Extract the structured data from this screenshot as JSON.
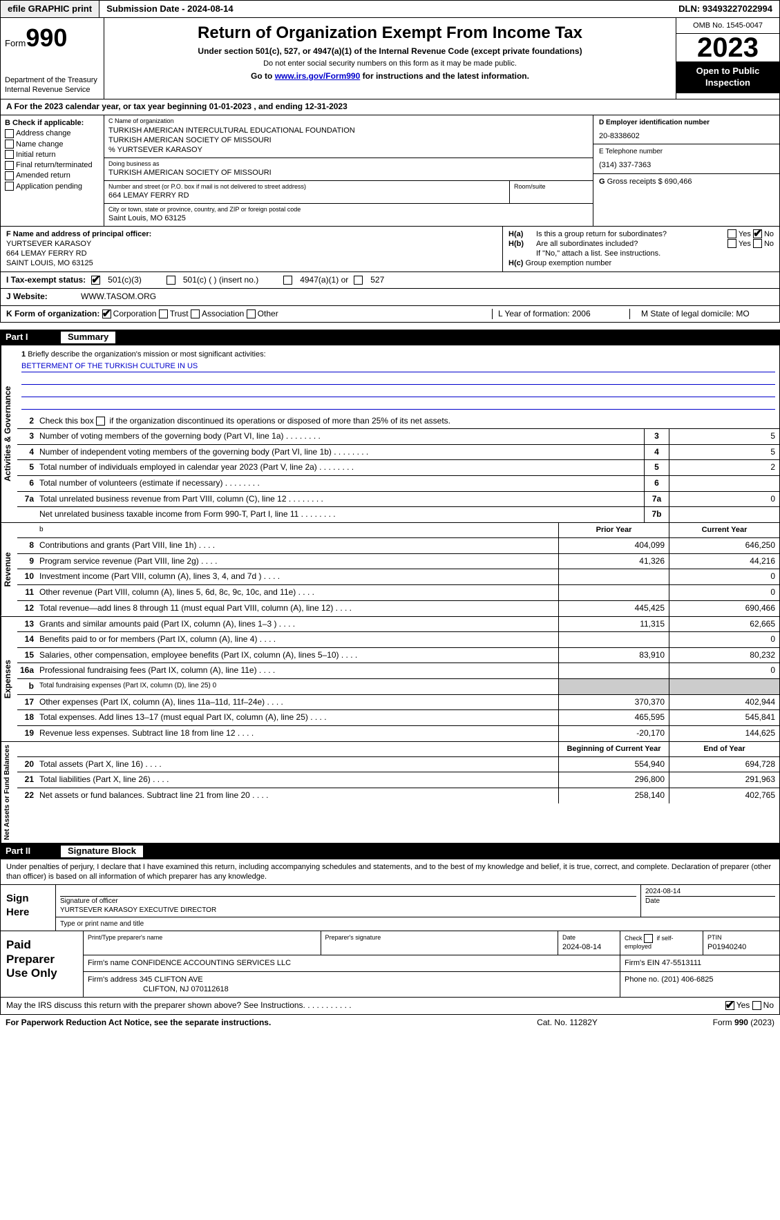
{
  "top": {
    "efile": "efile GRAPHIC print",
    "submission": "Submission Date - 2024-08-14",
    "dln": "DLN: 93493227022994"
  },
  "header": {
    "form_word": "Form",
    "form_no": "990",
    "title": "Return of Organization Exempt From Income Tax",
    "sub1": "Under section 501(c), 527, or 4947(a)(1) of the Internal Revenue Code (except private foundations)",
    "sub2": "Do not enter social security numbers on this form as it may be made public.",
    "sub3_pre": "Go to ",
    "sub3_link": "www.irs.gov/Form990",
    "sub3_post": " for instructions and the latest information.",
    "dept": "Department of the Treasury\nInternal Revenue Service",
    "omb": "OMB No. 1545-0047",
    "year": "2023",
    "inspection": "Open to Public Inspection"
  },
  "rowA": "A   For the 2023 calendar year, or tax year beginning 01-01-2023   , and ending 12-31-2023",
  "B": {
    "label": "B Check if applicable:",
    "items": [
      "Address change",
      "Name change",
      "Initial return",
      "Final return/terminated",
      "Amended return",
      "Application pending"
    ]
  },
  "C": {
    "name_lbl": "C Name of organization",
    "name1": "TURKISH AMERICAN INTERCULTURAL EDUCATIONAL FOUNDATION",
    "name2": "TURKISH AMERICAN SOCIETY OF MISSOURI",
    "name3": "% YURTSEVER KARASOY",
    "dba_lbl": "Doing business as",
    "dba": "TURKISH AMERICAN SOCIETY OF MISSOURI",
    "addr_lbl": "Number and street (or P.O. box if mail is not delivered to street address)",
    "addr": "664 LEMAY FERRY RD",
    "room_lbl": "Room/suite",
    "city_lbl": "City or town, state or province, country, and ZIP or foreign postal code",
    "city": "Saint Louis, MO  63125"
  },
  "D": {
    "lbl": "D Employer identification number",
    "val": "20-8338602"
  },
  "E": {
    "lbl": "E Telephone number",
    "val": "(314) 337-7363"
  },
  "G": {
    "lbl": "G",
    "text": "Gross receipts $ 690,466"
  },
  "F": {
    "lbl": "F  Name and address of principal officer:",
    "name": "YURTSEVER KARASOY",
    "addr": "664 LEMAY FERRY RD",
    "city": "SAINT LOUIS, MO  63125"
  },
  "H": {
    "a": "Is this a group return for subordinates?",
    "b": "Are all subordinates included?",
    "bnote": "If \"No,\" attach a list. See instructions.",
    "c": "Group exemption number",
    "yes": "Yes",
    "no": "No"
  },
  "I": {
    "lbl": "I   Tax-exempt status:",
    "o1": "501(c)(3)",
    "o2": "501(c) (  ) (insert no.)",
    "o3": "4947(a)(1) or",
    "o4": "527"
  },
  "J": {
    "lbl": "J   Website:",
    "val": "WWW.TASOM.ORG"
  },
  "K": {
    "lbl": "K Form of organization:",
    "o1": "Corporation",
    "o2": "Trust",
    "o3": "Association",
    "o4": "Other",
    "L": "L Year of formation: 2006",
    "M": "M State of legal domicile: MO"
  },
  "part1": {
    "num": "Part I",
    "title": "Summary"
  },
  "vlabels": {
    "ag": "Activities & Governance",
    "rev": "Revenue",
    "exp": "Expenses",
    "na": "Net Assets or Fund Balances"
  },
  "mission": {
    "n": "1",
    "t": "Briefly describe the organization's mission or most significant activities:",
    "val": "BETTERMENT OF THE TURKISH CULTURE IN US"
  },
  "line2": {
    "n": "2",
    "t": "Check this box        if the organization discontinued its operations or disposed of more than 25% of its net assets."
  },
  "ag_rows": [
    {
      "n": "3",
      "t": "Number of voting members of the governing body (Part VI, line 1a)",
      "bn": "3",
      "v": "5"
    },
    {
      "n": "4",
      "t": "Number of independent voting members of the governing body (Part VI, line 1b)",
      "bn": "4",
      "v": "5"
    },
    {
      "n": "5",
      "t": "Total number of individuals employed in calendar year 2023 (Part V, line 2a)",
      "bn": "5",
      "v": "2"
    },
    {
      "n": "6",
      "t": "Total number of volunteers (estimate if necessary)",
      "bn": "6",
      "v": ""
    },
    {
      "n": "7a",
      "t": "Total unrelated business revenue from Part VIII, column (C), line 12",
      "bn": "7a",
      "v": "0"
    },
    {
      "n": "",
      "t": "Net unrelated business taxable income from Form 990-T, Part I, line 11",
      "bn": "7b",
      "v": ""
    }
  ],
  "col_hdr": {
    "prior": "Prior Year",
    "current": "Current Year",
    "boy": "Beginning of Current Year",
    "eoy": "End of Year"
  },
  "rev_rows": [
    {
      "n": "8",
      "t": "Contributions and grants (Part VIII, line 1h)",
      "p": "404,099",
      "c": "646,250"
    },
    {
      "n": "9",
      "t": "Program service revenue (Part VIII, line 2g)",
      "p": "41,326",
      "c": "44,216"
    },
    {
      "n": "10",
      "t": "Investment income (Part VIII, column (A), lines 3, 4, and 7d )",
      "p": "",
      "c": "0"
    },
    {
      "n": "11",
      "t": "Other revenue (Part VIII, column (A), lines 5, 6d, 8c, 9c, 10c, and 11e)",
      "p": "",
      "c": "0"
    },
    {
      "n": "12",
      "t": "Total revenue—add lines 8 through 11 (must equal Part VIII, column (A), line 12)",
      "p": "445,425",
      "c": "690,466"
    }
  ],
  "exp_rows": [
    {
      "n": "13",
      "t": "Grants and similar amounts paid (Part IX, column (A), lines 1–3 )",
      "p": "11,315",
      "c": "62,665"
    },
    {
      "n": "14",
      "t": "Benefits paid to or for members (Part IX, column (A), line 4)",
      "p": "",
      "c": "0"
    },
    {
      "n": "15",
      "t": "Salaries, other compensation, employee benefits (Part IX, column (A), lines 5–10)",
      "p": "83,910",
      "c": "80,232"
    },
    {
      "n": "16a",
      "t": "Professional fundraising fees (Part IX, column (A), line 11e)",
      "p": "",
      "c": "0"
    },
    {
      "n": "b",
      "t": "Total fundraising expenses (Part IX, column (D), line 25) 0",
      "p": "SHADE",
      "c": "SHADE",
      "small": true
    },
    {
      "n": "17",
      "t": "Other expenses (Part IX, column (A), lines 11a–11d, 11f–24e)",
      "p": "370,370",
      "c": "402,944"
    },
    {
      "n": "18",
      "t": "Total expenses. Add lines 13–17 (must equal Part IX, column (A), line 25)",
      "p": "465,595",
      "c": "545,841"
    },
    {
      "n": "19",
      "t": "Revenue less expenses. Subtract line 18 from line 12",
      "p": "-20,170",
      "c": "144,625"
    }
  ],
  "na_rows": [
    {
      "n": "20",
      "t": "Total assets (Part X, line 16)",
      "p": "554,940",
      "c": "694,728"
    },
    {
      "n": "21",
      "t": "Total liabilities (Part X, line 26)",
      "p": "296,800",
      "c": "291,963"
    },
    {
      "n": "22",
      "t": "Net assets or fund balances. Subtract line 21 from line 20",
      "p": "258,140",
      "c": "402,765"
    }
  ],
  "part2": {
    "num": "Part II",
    "title": "Signature Block"
  },
  "penalty": "Under penalties of perjury, I declare that I have examined this return, including accompanying schedules and statements, and to the best of my knowledge and belief, it is true, correct, and complete. Declaration of preparer (other than officer) is based on all information of which preparer has any knowledge.",
  "sign": {
    "here": "Sign Here",
    "sig_lbl": "Signature of officer",
    "name": "YURTSEVER KARASOY EXECUTIVE DIRECTOR",
    "type_lbl": "Type or print name and title",
    "date_lbl": "Date",
    "date": "2024-08-14"
  },
  "prep": {
    "title": "Paid Preparer Use Only",
    "name_lbl": "Print/Type preparer's name",
    "sig_lbl": "Preparer's signature",
    "date_lbl": "Date",
    "date": "2024-08-14",
    "check_lbl": "Check        if self-employed",
    "ptin_lbl": "PTIN",
    "ptin": "P01940240",
    "firm_name_lbl": "Firm's name",
    "firm_name": "CONFIDENCE ACCOUNTING SERVICES LLC",
    "firm_ein_lbl": "Firm's EIN",
    "firm_ein": "47-5513111",
    "firm_addr_lbl": "Firm's address",
    "firm_addr": "345 CLIFTON AVE",
    "firm_city": "CLIFTON, NJ  070112618",
    "phone_lbl": "Phone no.",
    "phone": "(201) 406-6825"
  },
  "discuss": {
    "q": "May the IRS discuss this return with the preparer shown above? See Instructions.",
    "yes": "Yes",
    "no": "No"
  },
  "footer": {
    "l": "For Paperwork Reduction Act Notice, see the separate instructions.",
    "m": "Cat. No. 11282Y",
    "r_pre": "Form ",
    "r_no": "990",
    "r_post": " (2023)"
  }
}
